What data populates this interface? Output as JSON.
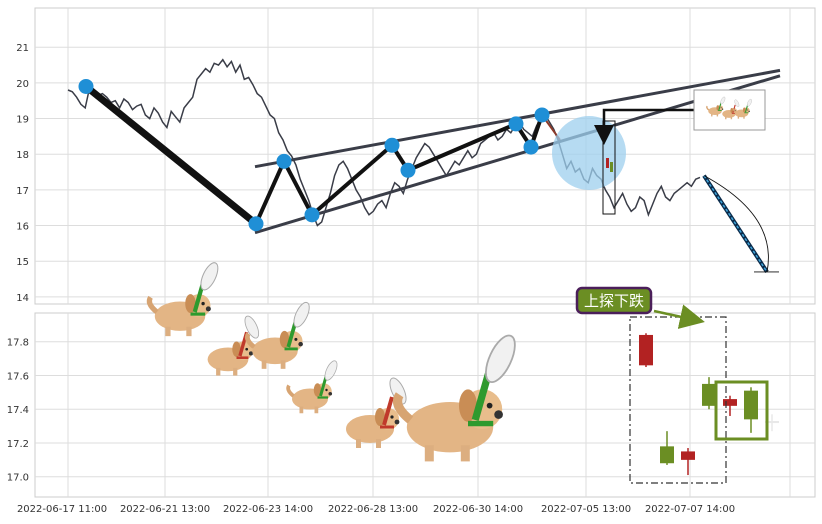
{
  "chart_data": [
    {
      "type": "line",
      "panel": "top",
      "ylim": [
        13.8,
        22.1
      ],
      "yticks": [
        14,
        15,
        16,
        17,
        18,
        19,
        20,
        21
      ],
      "grid": true,
      "series": [
        {
          "values": [
            19.8,
            19.75,
            19.6,
            19.4,
            19.3,
            19.85,
            19.75,
            19.65,
            19.7,
            19.6,
            19.45,
            19.5,
            19.3,
            19.55,
            19.45,
            19.25,
            19.35,
            19.4,
            19.1,
            19.0,
            19.3,
            19.15,
            18.9,
            18.75,
            19.2,
            19.05,
            18.9,
            19.3,
            19.45,
            19.6,
            20.1,
            20.25,
            20.4,
            20.3,
            20.55,
            20.5,
            20.65,
            20.45,
            20.6,
            20.3,
            20.5,
            20.1,
            20.15,
            19.95,
            19.7,
            19.6,
            19.35,
            19.1,
            19.0,
            18.6,
            18.4,
            18.1,
            17.95,
            17.7,
            17.3,
            17.0,
            16.7,
            16.3,
            16.0,
            16.1,
            16.5,
            16.9,
            17.4,
            17.7,
            17.8,
            17.6,
            17.3,
            17.0,
            16.8,
            16.5,
            16.3,
            16.4,
            16.6,
            16.7,
            16.5,
            16.9,
            17.2,
            17.1,
            16.9,
            17.3,
            17.6,
            17.9,
            18.1,
            18.3,
            18.2,
            18.0,
            17.8,
            17.6,
            17.4,
            17.6,
            17.8,
            17.7,
            17.9,
            18.1,
            17.9,
            18.0,
            18.3,
            18.4,
            18.5,
            18.6,
            18.4,
            18.5,
            18.7,
            18.6,
            18.8,
            18.9,
            18.7,
            18.6,
            18.5,
            18.8,
            19.0,
            19.1,
            18.9,
            18.7,
            18.4,
            18.0,
            17.6,
            17.8,
            17.5,
            17.6,
            17.3,
            17.2,
            17.6,
            17.4,
            17.3,
            17.0,
            16.8,
            16.5,
            16.7,
            16.9,
            16.6,
            16.4,
            16.5,
            16.8,
            16.7,
            16.3,
            16.6,
            16.9,
            17.1,
            16.8,
            16.7,
            16.9,
            17.0,
            17.1,
            17.2,
            17.1,
            17.3,
            17.35
          ],
          "color": "#3a3d48"
        }
      ],
      "pattern_points": [
        19.9,
        16.05,
        17.8,
        16.3,
        18.25,
        17.55,
        18.85,
        18.2,
        19.1
      ],
      "upper_trendline": [
        17.65,
        20.35
      ],
      "lower_trendline": [
        15.8,
        20.2
      ],
      "projection": [
        17.4,
        14.7
      ]
    },
    {
      "type": "candlestick",
      "panel": "bottom",
      "ylim": [
        16.88,
        17.97
      ],
      "yticks": [
        "17.0",
        "17.2",
        "17.4",
        "17.6",
        "17.8"
      ],
      "grid": true,
      "candles": [
        {
          "open": 17.66,
          "close": 17.84,
          "high": 17.85,
          "low": 17.65,
          "direction": "down"
        },
        {
          "open": 17.08,
          "close": 17.18,
          "high": 17.27,
          "low": 17.07,
          "direction": "up"
        },
        {
          "open": 17.15,
          "close": 17.1,
          "high": 17.17,
          "low": 17.01,
          "direction": "down"
        },
        {
          "open": 17.42,
          "close": 17.55,
          "high": 17.59,
          "low": 17.4,
          "direction": "up"
        },
        {
          "open": 17.42,
          "close": 17.46,
          "high": 17.48,
          "low": 17.36,
          "direction": "down"
        },
        {
          "open": 17.34,
          "close": 17.51,
          "high": 17.53,
          "low": 17.26,
          "direction": "up"
        }
      ],
      "annotation": "上探下跌",
      "x_ticks": [
        "2022-06-17 11:00",
        "2022-06-21 13:00",
        "2022-06-23 14:00",
        "2022-06-28 13:00",
        "2022-06-30 14:00",
        "2022-07-05 13:00",
        "2022-07-07 14:00"
      ]
    }
  ],
  "colors": {
    "up": "#6b8e23",
    "down": "#b22222",
    "line": "#3a3d48",
    "pattern": "#111111",
    "marker": "#1f8fd6",
    "trend": "#3a3d48",
    "annotation_fill": "#6b8e23",
    "annotation_border": "#4b1f5a",
    "circle": "#9ecfee"
  },
  "decorations": [
    "dog-with-propeller-icon"
  ]
}
